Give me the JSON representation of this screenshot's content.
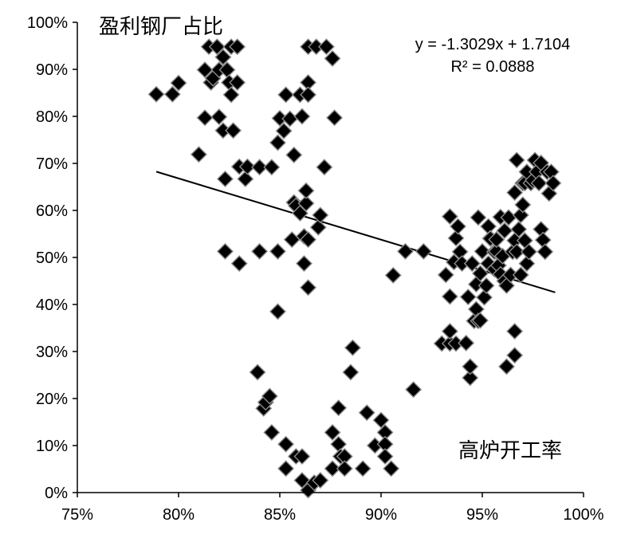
{
  "chart_data": {
    "type": "scatter",
    "title": "",
    "xlabel": "高炉开工率",
    "ylabel": "盈利钢厂占比",
    "xlim": [
      0.75,
      1.0
    ],
    "ylim": [
      0.0,
      1.0
    ],
    "x_ticks": [
      "75%",
      "80%",
      "85%",
      "90%",
      "95%",
      "100%"
    ],
    "y_ticks": [
      "0%",
      "10%",
      "20%",
      "30%",
      "40%",
      "50%",
      "60%",
      "70%",
      "80%",
      "90%",
      "100%"
    ],
    "grid": false,
    "legend": "none",
    "trendline": {
      "equation": "y = -1.3029x + 1.7104",
      "r_squared": "R² = 0.0888",
      "slope": -1.3029,
      "intercept": 1.7104,
      "x_range": [
        0.789,
        0.986
      ]
    },
    "marker_color": "#000000",
    "marker_edge_color": "#8a8a8a",
    "points": [
      [
        0.789,
        0.847
      ],
      [
        0.797,
        0.847
      ],
      [
        0.8,
        0.871
      ],
      [
        0.81,
        0.719
      ],
      [
        0.813,
        0.797
      ],
      [
        0.813,
        0.899
      ],
      [
        0.815,
        0.948
      ],
      [
        0.816,
        0.872
      ],
      [
        0.817,
        0.881
      ],
      [
        0.819,
        0.948
      ],
      [
        0.82,
        0.799
      ],
      [
        0.82,
        0.899
      ],
      [
        0.822,
        0.926
      ],
      [
        0.822,
        0.77
      ],
      [
        0.823,
        0.667
      ],
      [
        0.823,
        0.513
      ],
      [
        0.824,
        0.899
      ],
      [
        0.825,
        0.872
      ],
      [
        0.826,
        0.948
      ],
      [
        0.826,
        0.846
      ],
      [
        0.827,
        0.77
      ],
      [
        0.829,
        0.948
      ],
      [
        0.829,
        0.872
      ],
      [
        0.83,
        0.487
      ],
      [
        0.83,
        0.693
      ],
      [
        0.833,
        0.667
      ],
      [
        0.834,
        0.693
      ],
      [
        0.839,
        0.256
      ],
      [
        0.84,
        0.692
      ],
      [
        0.84,
        0.513
      ],
      [
        0.842,
        0.179
      ],
      [
        0.843,
        0.192
      ],
      [
        0.845,
        0.205
      ],
      [
        0.846,
        0.692
      ],
      [
        0.846,
        0.128
      ],
      [
        0.849,
        0.513
      ],
      [
        0.849,
        0.385
      ],
      [
        0.849,
        0.744
      ],
      [
        0.85,
        0.796
      ],
      [
        0.852,
        0.769
      ],
      [
        0.853,
        0.846
      ],
      [
        0.853,
        0.103
      ],
      [
        0.853,
        0.051
      ],
      [
        0.855,
        0.795
      ],
      [
        0.856,
        0.538
      ],
      [
        0.857,
        0.617
      ],
      [
        0.857,
        0.718
      ],
      [
        0.858,
        0.077
      ],
      [
        0.858,
        0.61
      ],
      [
        0.86,
        0.594
      ],
      [
        0.86,
        0.846
      ],
      [
        0.861,
        0.077
      ],
      [
        0.861,
        0.026
      ],
      [
        0.861,
        0.8
      ],
      [
        0.862,
        0.487
      ],
      [
        0.862,
        0.545
      ],
      [
        0.863,
        0.615
      ],
      [
        0.863,
        0.642
      ],
      [
        0.864,
        0.538
      ],
      [
        0.864,
        0.872
      ],
      [
        0.864,
        0.436
      ],
      [
        0.864,
        0.846
      ],
      [
        0.864,
        0.948
      ],
      [
        0.864,
        0.005
      ],
      [
        0.867,
        0.021
      ],
      [
        0.868,
        0.948
      ],
      [
        0.869,
        0.564
      ],
      [
        0.87,
        0.59
      ],
      [
        0.87,
        0.026
      ],
      [
        0.872,
        0.692
      ],
      [
        0.873,
        0.948
      ],
      [
        0.876,
        0.923
      ],
      [
        0.876,
        0.128
      ],
      [
        0.876,
        0.051
      ],
      [
        0.877,
        0.797
      ],
      [
        0.879,
        0.18
      ],
      [
        0.879,
        0.103
      ],
      [
        0.88,
        0.077
      ],
      [
        0.882,
        0.077
      ],
      [
        0.882,
        0.051
      ],
      [
        0.885,
        0.256
      ],
      [
        0.886,
        0.308
      ],
      [
        0.891,
        0.051
      ],
      [
        0.893,
        0.17
      ],
      [
        0.897,
        0.1
      ],
      [
        0.9,
        0.154
      ],
      [
        0.902,
        0.128
      ],
      [
        0.902,
        0.103
      ],
      [
        0.902,
        0.077
      ],
      [
        0.905,
        0.051
      ],
      [
        0.906,
        0.462
      ],
      [
        0.912,
        0.513
      ],
      [
        0.916,
        0.219
      ],
      [
        0.921,
        0.513
      ],
      [
        0.93,
        0.317
      ],
      [
        0.932,
        0.463
      ],
      [
        0.934,
        0.587
      ],
      [
        0.934,
        0.317
      ],
      [
        0.934,
        0.343
      ],
      [
        0.934,
        0.417
      ],
      [
        0.936,
        0.49
      ],
      [
        0.937,
        0.317
      ],
      [
        0.937,
        0.541
      ],
      [
        0.938,
        0.566
      ],
      [
        0.939,
        0.512
      ],
      [
        0.94,
        0.487
      ],
      [
        0.942,
        0.318
      ],
      [
        0.943,
        0.416
      ],
      [
        0.944,
        0.244
      ],
      [
        0.944,
        0.268
      ],
      [
        0.945,
        0.487
      ],
      [
        0.945,
        0.487
      ],
      [
        0.946,
        0.365
      ],
      [
        0.947,
        0.39
      ],
      [
        0.947,
        0.443
      ],
      [
        0.948,
        0.585
      ],
      [
        0.948,
        0.365
      ],
      [
        0.949,
        0.366
      ],
      [
        0.949,
        0.466
      ],
      [
        0.95,
        0.513
      ],
      [
        0.951,
        0.415
      ],
      [
        0.952,
        0.44
      ],
      [
        0.953,
        0.566
      ],
      [
        0.953,
        0.487
      ],
      [
        0.954,
        0.541
      ],
      [
        0.954,
        0.54
      ],
      [
        0.956,
        0.512
      ],
      [
        0.956,
        0.475
      ],
      [
        0.957,
        0.513
      ],
      [
        0.957,
        0.538
      ],
      [
        0.958,
        0.483
      ],
      [
        0.959,
        0.586
      ],
      [
        0.959,
        0.464
      ],
      [
        0.96,
        0.503
      ],
      [
        0.961,
        0.557
      ],
      [
        0.961,
        0.45
      ],
      [
        0.962,
        0.268
      ],
      [
        0.962,
        0.44
      ],
      [
        0.963,
        0.585
      ],
      [
        0.964,
        0.463
      ],
      [
        0.965,
        0.512
      ],
      [
        0.966,
        0.343
      ],
      [
        0.966,
        0.292
      ],
      [
        0.966,
        0.536
      ],
      [
        0.966,
        0.638
      ],
      [
        0.967,
        0.707
      ],
      [
        0.967,
        0.512
      ],
      [
        0.968,
        0.56
      ],
      [
        0.969,
        0.59
      ],
      [
        0.969,
        0.463
      ],
      [
        0.97,
        0.658
      ],
      [
        0.97,
        0.612
      ],
      [
        0.971,
        0.536
      ],
      [
        0.971,
        0.658
      ],
      [
        0.972,
        0.682
      ],
      [
        0.972,
        0.487
      ],
      [
        0.973,
        0.512
      ],
      [
        0.974,
        0.658
      ],
      [
        0.975,
        0.664
      ],
      [
        0.976,
        0.707
      ],
      [
        0.977,
        0.682
      ],
      [
        0.977,
        0.682
      ],
      [
        0.978,
        0.658
      ],
      [
        0.979,
        0.56
      ],
      [
        0.979,
        0.701
      ],
      [
        0.98,
        0.537
      ],
      [
        0.981,
        0.512
      ],
      [
        0.982,
        0.682
      ],
      [
        0.983,
        0.636
      ],
      [
        0.984,
        0.682
      ],
      [
        0.985,
        0.658
      ]
    ]
  }
}
